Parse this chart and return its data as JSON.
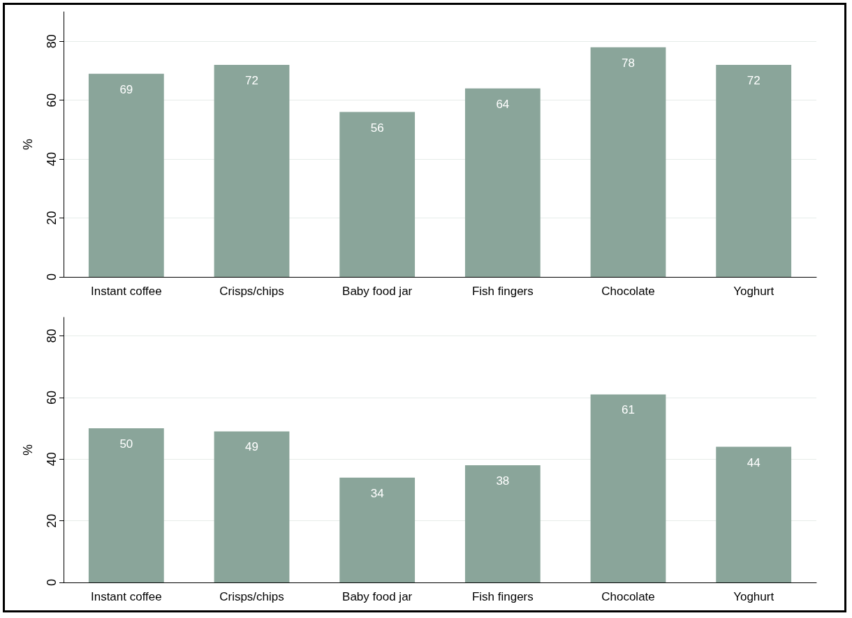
{
  "chart_data": [
    {
      "type": "bar",
      "ylabel": "%",
      "categories": [
        "Instant coffee",
        "Crisps/chips",
        "Baby food jar",
        "Fish fingers",
        "Chocolate",
        "Yoghurt"
      ],
      "values": [
        69,
        72,
        56,
        64,
        78,
        72
      ],
      "color": "#8aa59a",
      "ylim": [
        0,
        90
      ],
      "yticks": [
        0,
        20,
        40,
        60,
        80
      ],
      "grid": "y",
      "data_labels": true
    },
    {
      "type": "bar",
      "ylabel": "%",
      "categories": [
        "Instant coffee",
        "Crisps/chips",
        "Baby food jar",
        "Fish fingers",
        "Chocolate",
        "Yoghurt"
      ],
      "values": [
        50,
        49,
        34,
        38,
        61,
        44
      ],
      "color": "#8aa59a",
      "ylim": [
        0,
        86
      ],
      "yticks": [
        0,
        20,
        40,
        60,
        80
      ],
      "grid": "y",
      "data_labels": true
    }
  ]
}
